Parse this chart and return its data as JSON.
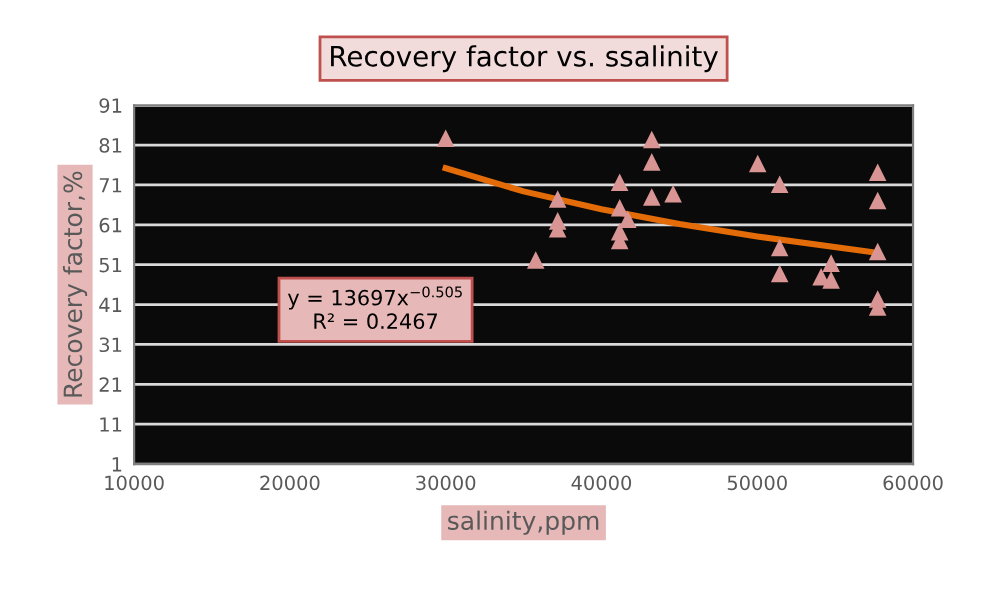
{
  "chart_data": {
    "type": "scatter",
    "title": "Recovery factor vs. ssalinity",
    "xlabel": "salinity,ppm",
    "ylabel": "Recovery factor,%",
    "annotations": [
      "y = 13697x$^{−0.505}$\nR² = 0.2467"
    ],
    "series": [
      {
        "color": "#d99594",
        "marker": "triangle",
        "x": [
          30000,
          35780,
          37190,
          37190,
          37190,
          41170,
          41170,
          41690,
          41170,
          41170,
          43230,
          43230,
          43230,
          44600,
          50030,
          51440,
          51440,
          51440,
          54100,
          54740,
          54740,
          57730,
          57730,
          57730,
          57730,
          57730
        ],
        "values": [
          82.7,
          52.2,
          67.5,
          62,
          60,
          71.7,
          65.3,
          62.4,
          59.3,
          57.1,
          82.4,
          76.8,
          68,
          68.8,
          76.4,
          71.2,
          55.3,
          48.8,
          48,
          51.4,
          47.2,
          74.2,
          67.1,
          54.3,
          42.4,
          40.4
        ]
      },
      {
        "type": "line",
        "color": "#e36c09",
        "x": [
          30000,
          35000,
          40000,
          45000,
          50000,
          57700
        ],
        "values": [
          75.2,
          69.4,
          64.9,
          61.2,
          58.1,
          54.0
        ]
      }
    ],
    "xlim": [
      10000,
      60000
    ],
    "xticks": [
      10000,
      20000,
      30000,
      40000,
      50000,
      60000
    ],
    "ylim": [
      1,
      91
    ],
    "yticks": [
      1,
      11,
      21,
      31,
      41,
      51,
      61,
      71,
      81,
      91
    ],
    "grid": "y",
    "legend": false
  }
}
